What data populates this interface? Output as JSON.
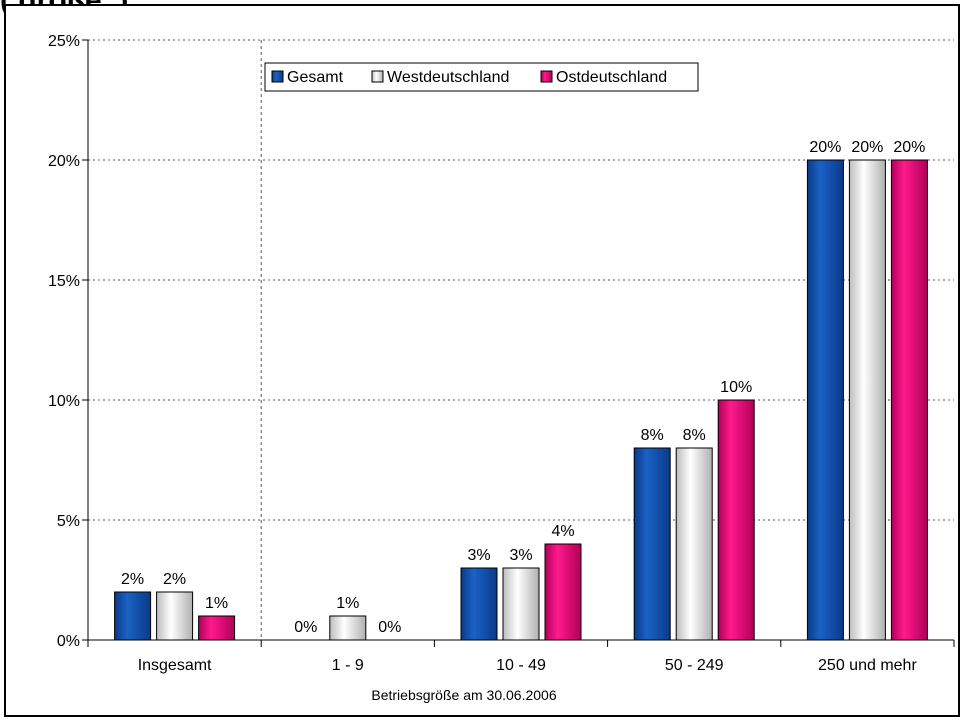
{
  "title_fragment": "(                     größe,                                                           )",
  "chart_data": {
    "type": "bar",
    "categories": [
      "Insgesamt",
      "1 - 9",
      "10 - 49",
      "50 - 249",
      "250 und mehr"
    ],
    "series": [
      {
        "name": "Gesamt",
        "values": [
          2,
          0,
          3,
          8,
          20
        ],
        "labels": [
          "2%",
          "0%",
          "3%",
          "8%",
          "20%"
        ]
      },
      {
        "name": "Westdeutschland",
        "values": [
          2,
          1,
          3,
          8,
          20
        ],
        "labels": [
          "2%",
          "1%",
          "3%",
          "8%",
          "20%"
        ]
      },
      {
        "name": "Ostdeutschland",
        "values": [
          1,
          0,
          4,
          10,
          20
        ],
        "labels": [
          "1%",
          "0%",
          "4%",
          "10%",
          "20%"
        ]
      }
    ],
    "y_ticks": [
      0,
      5,
      10,
      15,
      20,
      25
    ],
    "y_tick_labels": [
      "0%",
      "5%",
      "10%",
      "15%",
      "20%",
      "25%"
    ],
    "ylim": [
      0,
      25
    ],
    "xlabel": "Betriebsgröße am 30.06.2006",
    "ylabel": "",
    "grid": "horizontal-dotted",
    "separator_after_category": 0,
    "legend_position": "top-left-inside",
    "colors": {
      "Gesamt": "#0a4da8",
      "Westdeutschland": "#dcdcdc",
      "Ostdeutschland": "#e0006e"
    }
  }
}
